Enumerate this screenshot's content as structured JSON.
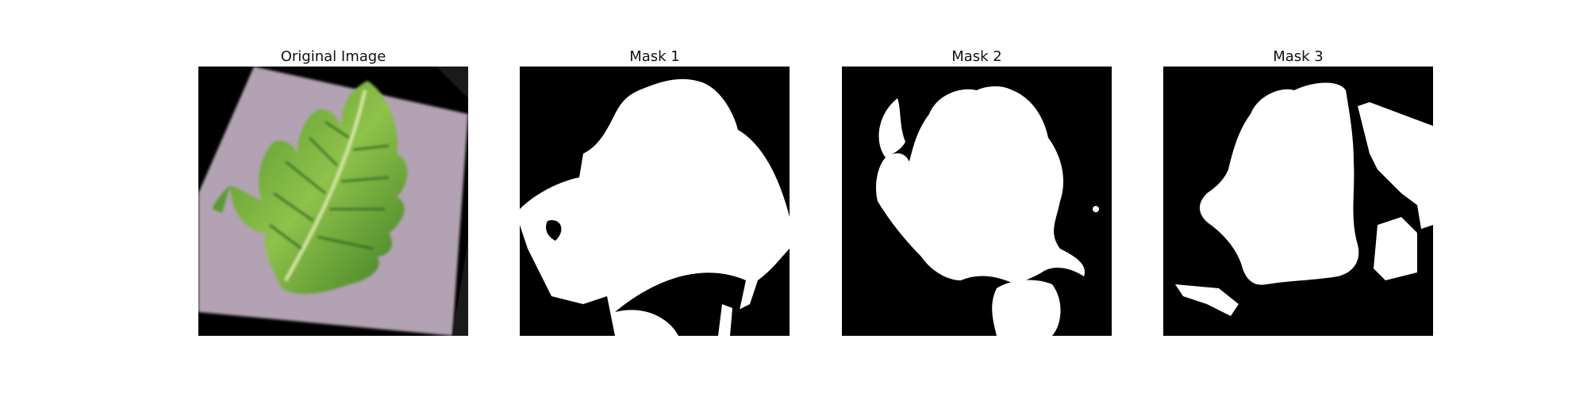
{
  "panels": [
    {
      "title": "Original Image",
      "kind": "photo"
    },
    {
      "title": "Mask 1",
      "kind": "mask"
    },
    {
      "title": "Mask 2",
      "kind": "mask"
    },
    {
      "title": "Mask 3",
      "kind": "mask"
    }
  ],
  "colors": {
    "background": "#000000",
    "mask_foreground": "#ffffff",
    "paper": "#b3a2b3",
    "leaf_dark": "#2f6d1f",
    "leaf_light": "#8fc24a"
  }
}
